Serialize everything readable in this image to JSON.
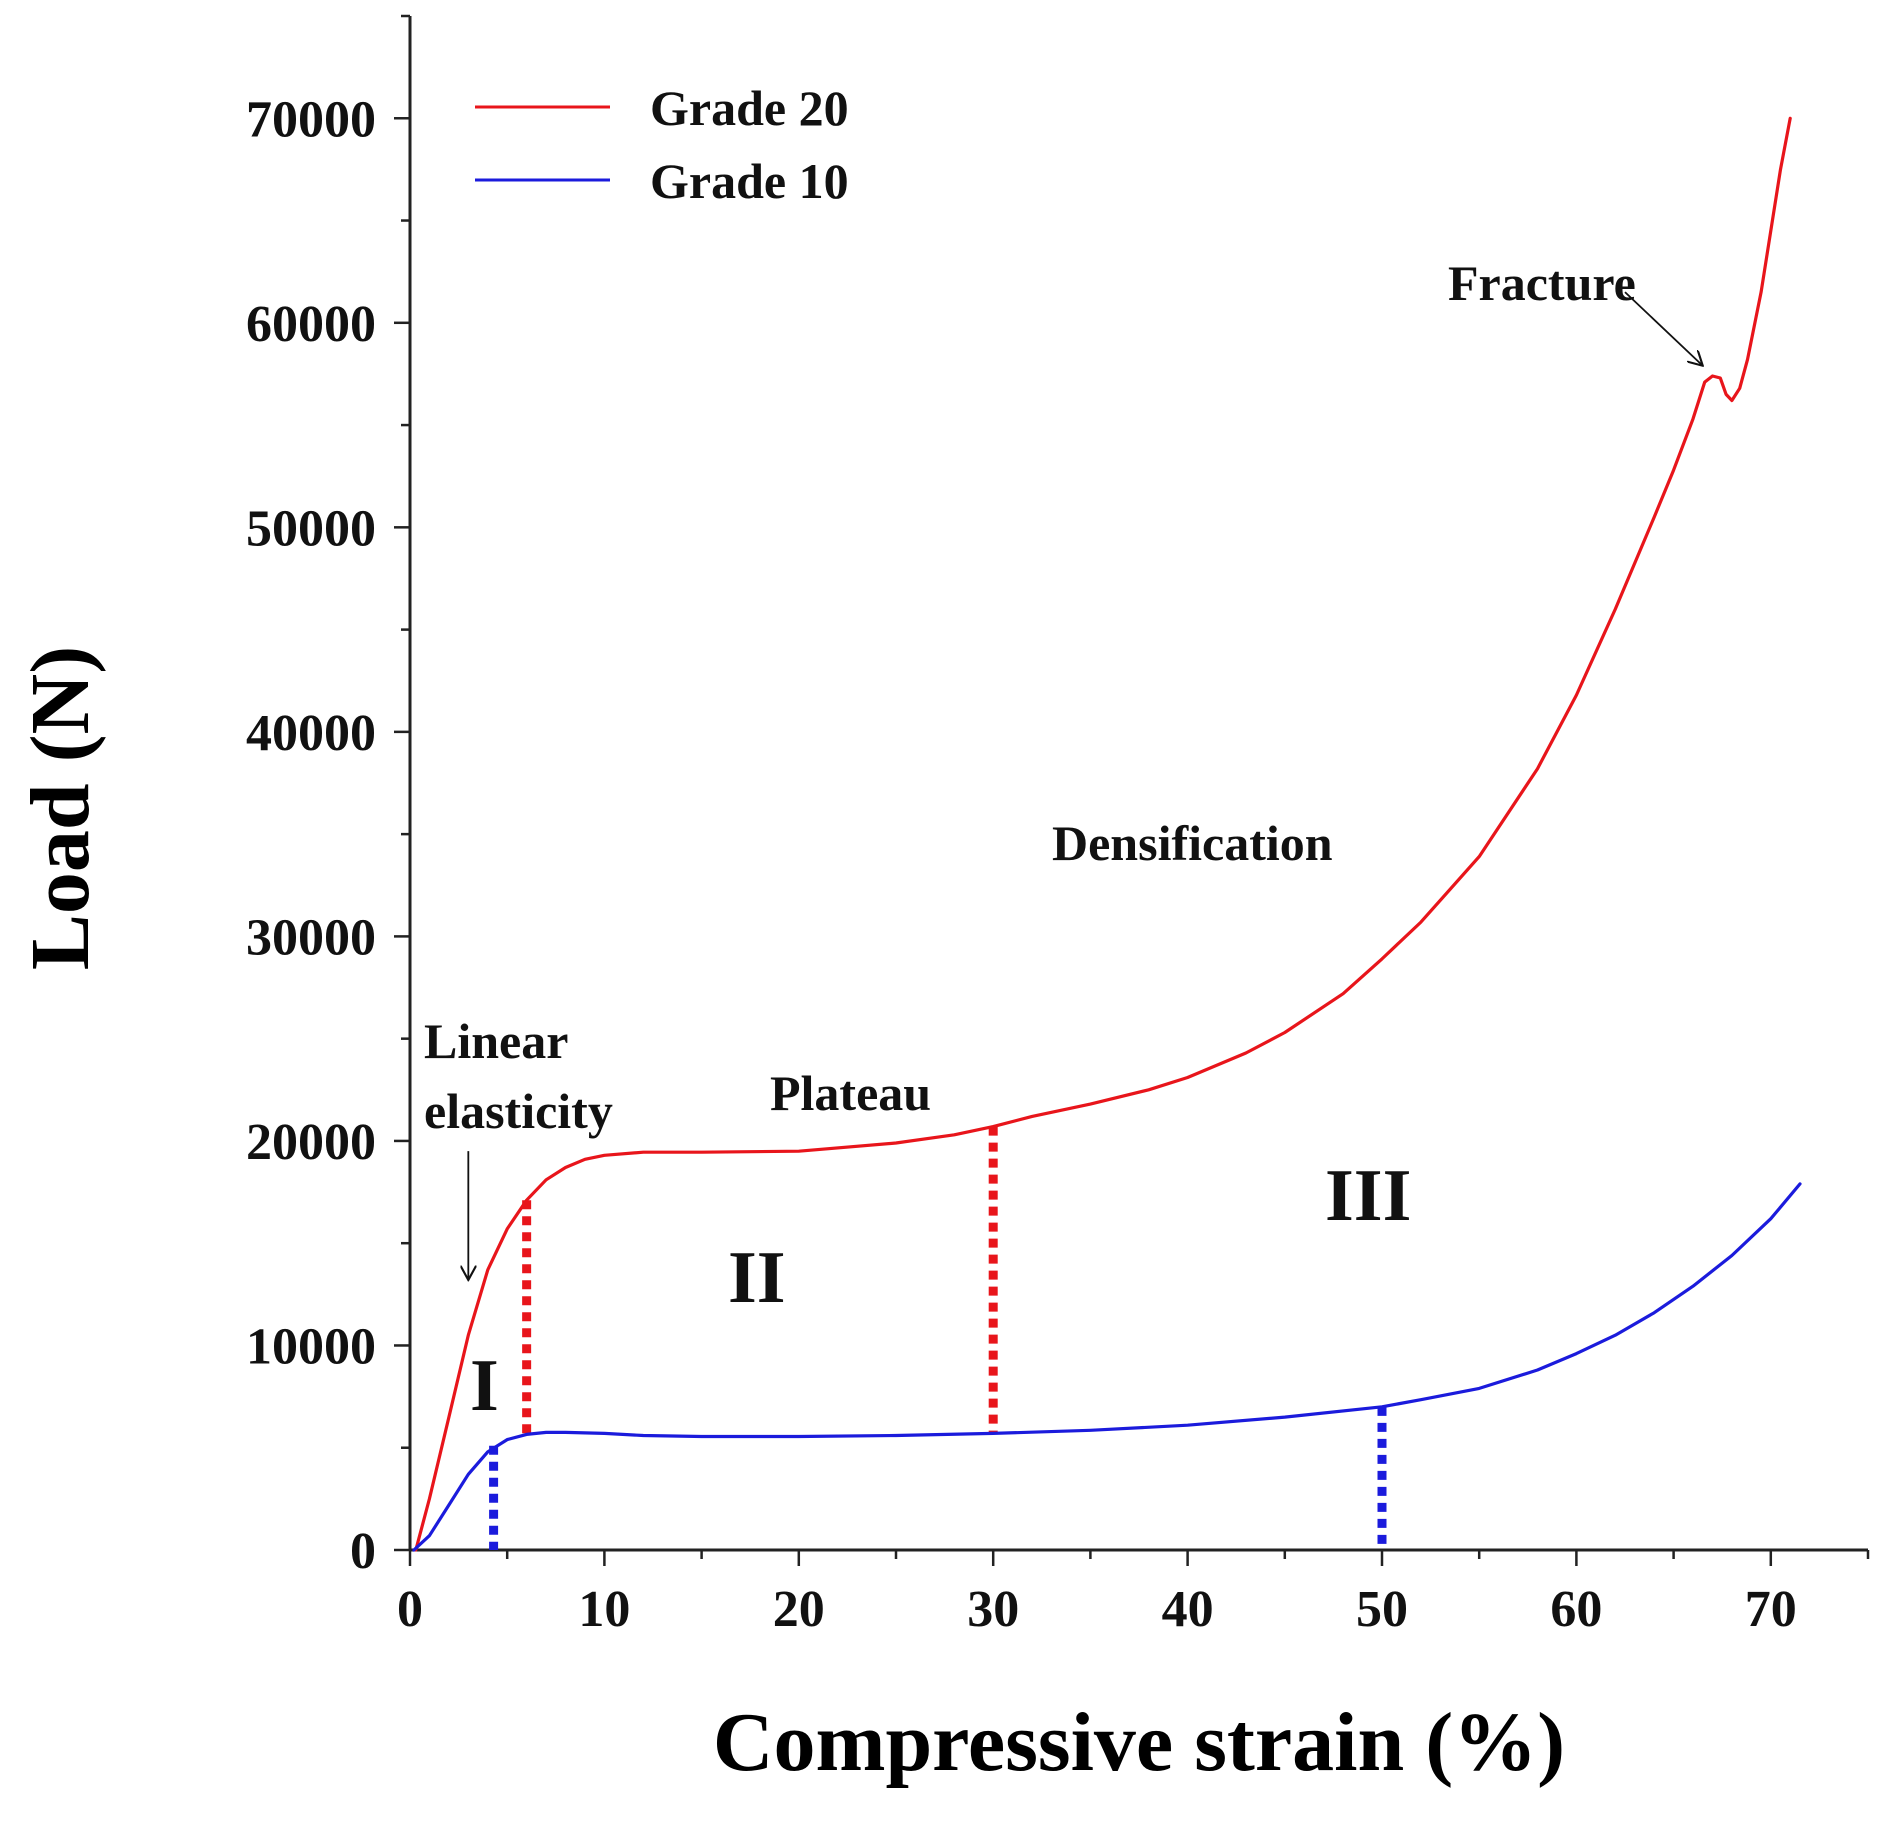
{
  "chart_data": {
    "type": "line",
    "title": "",
    "xlabel": "Compressive strain (%)",
    "ylabel": "Load (N)",
    "xlim": [
      0,
      75
    ],
    "ylim": [
      0,
      75000
    ],
    "xticks": [
      0,
      10,
      20,
      30,
      40,
      50,
      60,
      70
    ],
    "yticks": [
      0,
      10000,
      20000,
      30000,
      40000,
      50000,
      60000,
      70000
    ],
    "x_minor_step": 5,
    "y_minor_step": 5000,
    "legend_position": "top-left",
    "series": [
      {
        "name": "Grade 20",
        "color": "#e8151b",
        "points": [
          [
            0.3,
            0
          ],
          [
            1,
            2500
          ],
          [
            2,
            6500
          ],
          [
            3,
            10500
          ],
          [
            4,
            13700
          ],
          [
            5,
            15700
          ],
          [
            6,
            17100
          ],
          [
            7,
            18100
          ],
          [
            8,
            18700
          ],
          [
            9,
            19100
          ],
          [
            10,
            19300
          ],
          [
            12,
            19450
          ],
          [
            15,
            19450
          ],
          [
            20,
            19500
          ],
          [
            25,
            19900
          ],
          [
            28,
            20300
          ],
          [
            30,
            20700
          ],
          [
            32,
            21200
          ],
          [
            35,
            21800
          ],
          [
            38,
            22500
          ],
          [
            40,
            23100
          ],
          [
            43,
            24300
          ],
          [
            45,
            25300
          ],
          [
            48,
            27200
          ],
          [
            50,
            28900
          ],
          [
            52,
            30700
          ],
          [
            55,
            33900
          ],
          [
            58,
            38200
          ],
          [
            60,
            41800
          ],
          [
            62,
            46000
          ],
          [
            64,
            50500
          ],
          [
            65,
            52800
          ],
          [
            66,
            55300
          ],
          [
            66.6,
            57100
          ],
          [
            67,
            57400
          ],
          [
            67.4,
            57300
          ],
          [
            67.7,
            56500
          ],
          [
            68,
            56200
          ],
          [
            68.4,
            56800
          ],
          [
            68.8,
            58200
          ],
          [
            69.5,
            61500
          ],
          [
            70,
            64500
          ],
          [
            70.5,
            67500
          ],
          [
            71,
            70000
          ]
        ]
      },
      {
        "name": "Grade 10",
        "color": "#1b1bdc",
        "points": [
          [
            0.2,
            0
          ],
          [
            1,
            700
          ],
          [
            2,
            2200
          ],
          [
            3,
            3700
          ],
          [
            4,
            4800
          ],
          [
            5,
            5400
          ],
          [
            6,
            5650
          ],
          [
            7,
            5750
          ],
          [
            8,
            5750
          ],
          [
            10,
            5700
          ],
          [
            12,
            5600
          ],
          [
            15,
            5550
          ],
          [
            20,
            5550
          ],
          [
            25,
            5600
          ],
          [
            30,
            5700
          ],
          [
            35,
            5850
          ],
          [
            40,
            6100
          ],
          [
            45,
            6500
          ],
          [
            50,
            7000
          ],
          [
            52,
            7350
          ],
          [
            55,
            7900
          ],
          [
            58,
            8800
          ],
          [
            60,
            9600
          ],
          [
            62,
            10500
          ],
          [
            64,
            11600
          ],
          [
            66,
            12900
          ],
          [
            68,
            14400
          ],
          [
            70,
            16200
          ],
          [
            71.5,
            17900
          ]
        ]
      }
    ],
    "region_boundaries": [
      {
        "series": "Grade 20",
        "x": 6,
        "y_top": 17100,
        "y_bottom": 5700,
        "color": "#e8151b"
      },
      {
        "series": "Grade 20",
        "x": 30,
        "y_top": 20700,
        "y_bottom": 5700,
        "color": "#e8151b"
      },
      {
        "series": "Grade 10",
        "x": 4.3,
        "y_top": 5100,
        "y_bottom": 0,
        "color": "#1b1bdc"
      },
      {
        "series": "Grade 10",
        "x": 50,
        "y_top": 7000,
        "y_bottom": 0,
        "color": "#1b1bdc"
      }
    ],
    "annotations": {
      "linear_elasticity_line1": "Linear",
      "linear_elasticity_line2": "elasticity",
      "plateau": "Plateau",
      "densification": "Densification",
      "fracture": "Fracture",
      "region_1": "I",
      "region_2": "II",
      "region_3": "III"
    },
    "arrows": [
      {
        "label": "Linear elasticity",
        "x_from": 3,
        "y_from": 19500,
        "x_to": 3,
        "y_to": 13200
      },
      {
        "label": "Fracture",
        "x_from": 62.5,
        "y_from": 61500,
        "x_to": 66.5,
        "y_to": 57900
      }
    ]
  }
}
